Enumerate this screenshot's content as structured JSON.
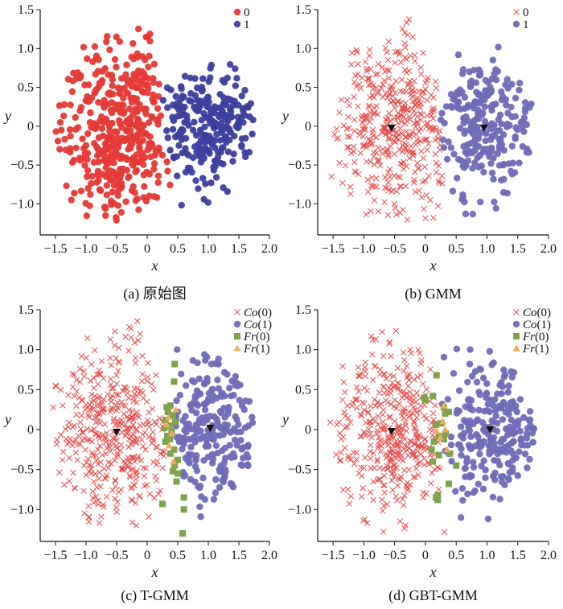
{
  "colors": {
    "red": "#e53935",
    "blue": "#3c3f9e",
    "purple": "#6f6cb8",
    "pink": "#e64d4d",
    "green": "#7fa24a",
    "orange": "#f2ac58",
    "black": "#111111"
  },
  "chart_data": [
    {
      "type": "scatter",
      "id": "a",
      "caption": "(a) 原始图",
      "xlabel": "x",
      "ylabel": "y",
      "xlim": [
        -1.75,
        2.0
      ],
      "ylim": [
        -1.4,
        1.5
      ],
      "xticks": [
        "−1.5",
        "−1.0",
        "−0.5",
        "0",
        "0.5",
        "1.0",
        "1.5",
        "2.0"
      ],
      "yticks": [
        "−1.0",
        "−0.5",
        "0",
        "0.5",
        "1.0",
        "1.5"
      ],
      "legend": [
        {
          "label": "0",
          "marker": "circle",
          "color": "#e53935"
        },
        {
          "label": "1",
          "marker": "circle",
          "color": "#3c3f9e"
        }
      ],
      "series": [
        {
          "name": "0",
          "marker": "circle",
          "color": "#e53935",
          "cx": -0.45,
          "cy": 0.0,
          "sx": 0.5,
          "sy": 0.55,
          "xmin": -1.55,
          "xmax": 0.55,
          "ymin": -1.3,
          "ymax": 1.42,
          "count": 420,
          "split": 0.3,
          "side": "left"
        },
        {
          "name": "1",
          "marker": "circle",
          "color": "#3c3f9e",
          "cx": 1.05,
          "cy": 0.0,
          "sx": 0.4,
          "sy": 0.45,
          "xmin": 0.2,
          "xmax": 1.9,
          "ymin": -1.28,
          "ymax": 0.85,
          "count": 240,
          "split": 0.3,
          "side": "right"
        }
      ]
    },
    {
      "type": "scatter",
      "id": "b",
      "caption": "(b) GMM",
      "xlabel": "x",
      "ylabel": "y",
      "xlim": [
        -1.75,
        2.0
      ],
      "ylim": [
        -1.4,
        1.5
      ],
      "xticks": [
        "−1.5",
        "−1.0",
        "−0.5",
        "0",
        "0.5",
        "1.0",
        "1.5",
        "2.0"
      ],
      "yticks": [
        "−1.0",
        "−0.5",
        "0",
        "0.5",
        "1.0",
        "1.5"
      ],
      "legend": [
        {
          "label": "0",
          "marker": "cross",
          "color": "#e64d4d"
        },
        {
          "label": "1",
          "marker": "circle",
          "color": "#6f6cb8"
        }
      ],
      "centers": [
        {
          "x": -0.55,
          "y": -0.02
        },
        {
          "x": 0.95,
          "y": -0.02
        }
      ],
      "series": [
        {
          "name": "0",
          "marker": "cross",
          "color": "#e64d4d",
          "cx": -0.5,
          "cy": 0.0,
          "sx": 0.52,
          "sy": 0.55,
          "xmin": -1.55,
          "xmax": 0.5,
          "ymin": -1.3,
          "ymax": 1.42,
          "count": 420,
          "split": 0.25,
          "side": "left"
        },
        {
          "name": "1",
          "marker": "circle",
          "color": "#6f6cb8",
          "cx": 1.0,
          "cy": 0.0,
          "sx": 0.42,
          "sy": 0.45,
          "xmin": 0.25,
          "xmax": 1.9,
          "ymin": -1.28,
          "ymax": 1.28,
          "count": 240,
          "split": 0.25,
          "side": "right"
        }
      ]
    },
    {
      "type": "scatter",
      "id": "c",
      "caption": "(c) T-GMM",
      "xlabel": "x",
      "ylabel": "y",
      "xlim": [
        -1.75,
        2.0
      ],
      "ylim": [
        -1.4,
        1.5
      ],
      "xticks": [
        "−1.5",
        "−1.0",
        "−0.5",
        "0",
        "0.5",
        "1.0",
        "1.5",
        "2.0"
      ],
      "yticks": [
        "−1.0",
        "−0.5",
        "0",
        "0.5",
        "1.0",
        "1.5"
      ],
      "legend": [
        {
          "label": "Co",
          "suffix": "(0)",
          "marker": "cross",
          "color": "#e64d4d"
        },
        {
          "label": "Co",
          "suffix": "(1)",
          "marker": "circle",
          "color": "#6f6cb8"
        },
        {
          "label": "Fr",
          "suffix": "(0)",
          "marker": "square",
          "color": "#7fa24a"
        },
        {
          "label": "Fr",
          "suffix": "(1)",
          "marker": "triangle",
          "color": "#f2ac58"
        }
      ],
      "centers": [
        {
          "x": -0.5,
          "y": -0.03
        },
        {
          "x": 1.03,
          "y": 0.02
        }
      ],
      "series": [
        {
          "name": "Co(0)",
          "marker": "cross",
          "color": "#e64d4d",
          "cx": -0.5,
          "cy": 0.0,
          "sx": 0.5,
          "sy": 0.55,
          "xmin": -1.55,
          "xmax": 0.3,
          "ymin": -1.3,
          "ymax": 1.42,
          "count": 400,
          "split": 0.3,
          "side": "left"
        },
        {
          "name": "Co(1)",
          "marker": "circle",
          "color": "#6f6cb8",
          "cx": 1.05,
          "cy": 0.0,
          "sx": 0.42,
          "sy": 0.45,
          "xmin": 0.45,
          "xmax": 1.9,
          "ymin": -1.28,
          "ymax": 1.28,
          "count": 230,
          "split": 0.45,
          "side": "right"
        }
      ],
      "fringe": {
        "Fr(0)": [
          [
            0.45,
            0.82
          ],
          [
            0.44,
            0.6
          ],
          [
            0.32,
            0.28
          ],
          [
            0.38,
            0.3
          ],
          [
            0.34,
            0.22
          ],
          [
            0.42,
            0.18
          ],
          [
            0.3,
            0.12
          ],
          [
            0.36,
            0.05
          ],
          [
            0.28,
            0.02
          ],
          [
            0.4,
            -0.02
          ],
          [
            0.33,
            -0.08
          ],
          [
            0.37,
            -0.12
          ],
          [
            0.3,
            -0.15
          ],
          [
            0.44,
            -0.25
          ],
          [
            0.38,
            -0.3
          ],
          [
            0.45,
            -0.45
          ],
          [
            0.42,
            -0.52
          ],
          [
            0.5,
            -0.55
          ],
          [
            0.48,
            -0.65
          ],
          [
            0.6,
            -0.85
          ],
          [
            0.6,
            -1.0
          ],
          [
            0.25,
            -0.93
          ],
          [
            0.58,
            -1.3
          ],
          [
            0.46,
            0.1
          ],
          [
            0.5,
            -0.38
          ]
        ],
        "Fr(1)": [
          [
            0.35,
            0.15
          ],
          [
            0.4,
            -0.05
          ],
          [
            0.32,
            0.06
          ],
          [
            0.43,
            -0.4
          ],
          [
            0.36,
            -0.2
          ],
          [
            0.47,
            0.25
          ]
        ]
      }
    },
    {
      "type": "scatter",
      "id": "d",
      "caption": "(d) GBT-GMM",
      "xlabel": "x",
      "ylabel": "y",
      "xlim": [
        -1.75,
        2.0
      ],
      "ylim": [
        -1.4,
        1.5
      ],
      "xticks": [
        "−1.5",
        "−1.0",
        "−0.5",
        "0",
        "0.5",
        "1.0",
        "1.5",
        "2.0"
      ],
      "yticks": [
        "−1.0",
        "−0.5",
        "0",
        "0.5",
        "1.0",
        "1.5"
      ],
      "legend": [
        {
          "label": "Co",
          "suffix": "(0)",
          "marker": "cross",
          "color": "#e64d4d"
        },
        {
          "label": "Co",
          "suffix": "(1)",
          "marker": "circle",
          "color": "#6f6cb8"
        },
        {
          "label": "Fr",
          "suffix": "(0)",
          "marker": "square",
          "color": "#7fa24a"
        },
        {
          "label": "Fr",
          "suffix": "(1)",
          "marker": "triangle",
          "color": "#f2ac58"
        }
      ],
      "centers": [
        {
          "x": -0.55,
          "y": -0.02
        },
        {
          "x": 1.05,
          "y": 0.0
        }
      ],
      "series": [
        {
          "name": "Co(0)",
          "marker": "cross",
          "color": "#e64d4d",
          "cx": -0.5,
          "cy": 0.0,
          "sx": 0.5,
          "sy": 0.55,
          "xmin": -1.55,
          "xmax": 0.4,
          "ymin": -1.3,
          "ymax": 1.42,
          "count": 400,
          "split": 0.2,
          "side": "left"
        },
        {
          "name": "Co(1)",
          "marker": "circle",
          "color": "#6f6cb8",
          "cx": 1.05,
          "cy": 0.0,
          "sx": 0.42,
          "sy": 0.45,
          "xmin": 0.2,
          "xmax": 1.9,
          "ymin": -1.28,
          "ymax": 1.28,
          "count": 235,
          "split": 0.28,
          "side": "right"
        }
      ],
      "fringe": {
        "Fr(0)": [
          [
            0.18,
            0.68
          ],
          [
            0.12,
            0.42
          ],
          [
            -0.02,
            0.4
          ],
          [
            0.0,
            0.37
          ],
          [
            0.3,
            0.28
          ],
          [
            0.32,
            0.2
          ],
          [
            0.26,
            0.08
          ],
          [
            0.38,
            0.22
          ],
          [
            0.17,
            0.06
          ],
          [
            0.22,
            -0.08
          ],
          [
            0.33,
            -0.05
          ],
          [
            0.3,
            -0.12
          ],
          [
            0.14,
            -0.15
          ],
          [
            0.1,
            -0.25
          ],
          [
            0.22,
            -0.32
          ],
          [
            0.12,
            -0.4
          ],
          [
            0.4,
            -0.3
          ],
          [
            0.5,
            -0.45
          ],
          [
            0.38,
            -0.68
          ],
          [
            0.2,
            -0.82
          ],
          [
            0.17,
            -0.85
          ],
          [
            0.2,
            -0.88
          ]
        ],
        "Fr(1)": [
          [
            0.28,
            0.1
          ],
          [
            0.32,
            0.0
          ],
          [
            0.18,
            -0.02
          ],
          [
            0.24,
            -0.1
          ],
          [
            0.35,
            -0.25
          ],
          [
            0.3,
            0.3
          ]
        ]
      }
    }
  ]
}
